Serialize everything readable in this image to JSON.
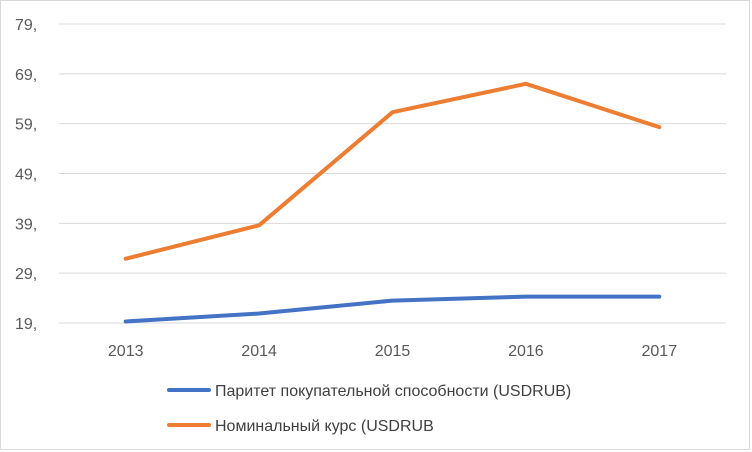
{
  "chart_data": {
    "type": "line",
    "x": [
      "2013",
      "2014",
      "2015",
      "2016",
      "2017"
    ],
    "y_ticks": [
      "19,",
      "29,",
      "39,",
      "49,",
      "59,",
      "69,",
      "79,"
    ],
    "y_tick_values": [
      19,
      29,
      39,
      49,
      59,
      69,
      79
    ],
    "ylim": [
      19,
      79
    ],
    "grid": true,
    "legend_position": "bottom",
    "series": [
      {
        "name": "Паритет покупательной способности (USDRUB)",
        "color": "#4472C4",
        "values": [
          19.3,
          20.9,
          23.5,
          24.3,
          24.3
        ]
      },
      {
        "name": "Номинальный курс (USDRUB",
        "color": "#ED7D31",
        "values": [
          31.9,
          38.6,
          61.3,
          67.0,
          58.3
        ]
      }
    ]
  }
}
